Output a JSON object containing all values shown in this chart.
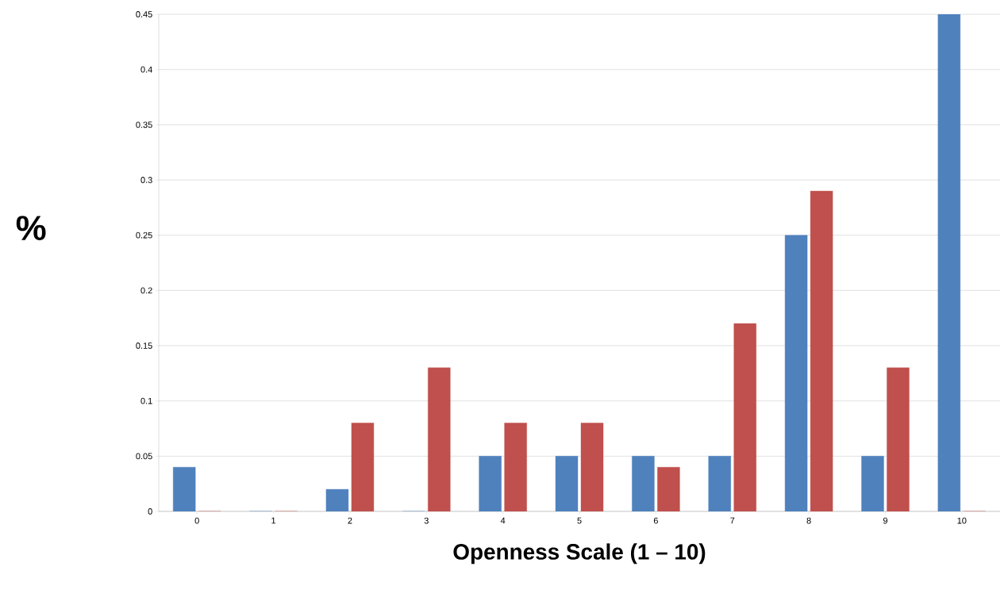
{
  "chart_data": {
    "type": "bar",
    "xlabel": "Openness Scale (1 – 10)",
    "ylabel": "%",
    "categories": [
      "0",
      "1",
      "2",
      "3",
      "4",
      "5",
      "6",
      "7",
      "8",
      "9",
      "10"
    ],
    "series": [
      {
        "color": "#4f81bd",
        "values": [
          0.04,
          0,
          0.02,
          0,
          0.05,
          0.05,
          0.05,
          0.05,
          0.25,
          0.05,
          0.45
        ]
      },
      {
        "color": "#c0504d",
        "values": [
          0,
          0,
          0.08,
          0.13,
          0.08,
          0.08,
          0.04,
          0.17,
          0.29,
          0.13,
          0
        ]
      }
    ],
    "ylim": [
      0,
      0.45
    ],
    "yticks": [
      0,
      0.05,
      0.1,
      0.15,
      0.2,
      0.25,
      0.3,
      0.35,
      0.4,
      0.45
    ],
    "grid": "y"
  }
}
